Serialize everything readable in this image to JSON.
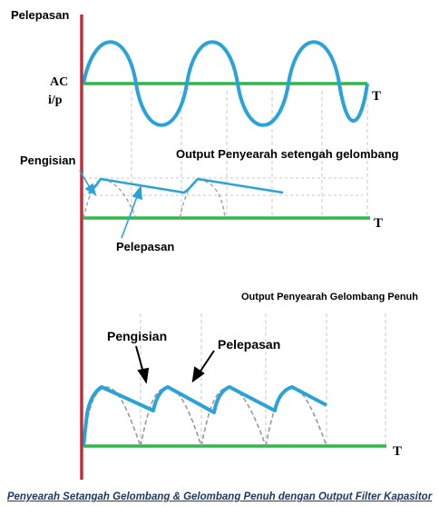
{
  "labels": {
    "top_title": "Pelepasan",
    "ac_input_line1": "AC",
    "ac_input_line2": "i/p",
    "time_axis": "T",
    "half_wave_title": "Output Penyearah setengah gelombang",
    "half_wave_charging": "Pengisian",
    "half_wave_discharging": "Pelepasan",
    "full_wave_title": "Output Penyearah Gelombang Penuh",
    "full_wave_charging": "Pengisian",
    "full_wave_discharging": "Pelepasan",
    "caption": "Penyearah Setangah Gelombang & Gelombang Penuh dengan Output Filter Kapasitor"
  },
  "colors": {
    "axis_vertical": "#c0303a",
    "baseline": "#2db84a",
    "waveform": "#29a3d8",
    "rectified_dashed": "#999999",
    "grid_dashed": "#c8c8c8",
    "caption": "#1f3864"
  }
}
